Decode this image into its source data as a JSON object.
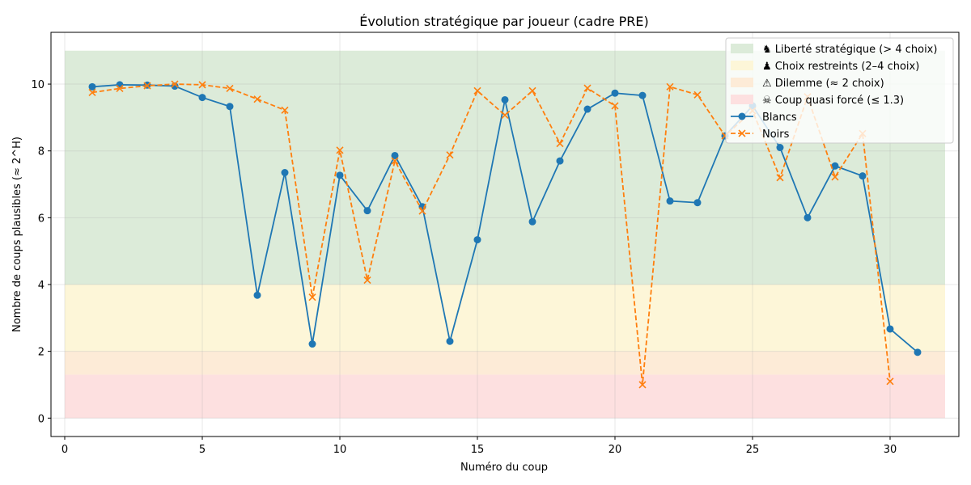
{
  "chart_data": {
    "type": "line",
    "title": "Évolution stratégique par joueur (cadre PRE)",
    "xlabel": "Numéro du coup",
    "ylabel": "Nombre de coups plausibles (≈ 2^H)",
    "xlim": [
      -0.5,
      32.5
    ],
    "ylim": [
      -0.55,
      11.55
    ],
    "xticks": [
      0,
      5,
      10,
      15,
      20,
      25,
      30
    ],
    "yticks": [
      0,
      2,
      4,
      6,
      8,
      10
    ],
    "grid": true,
    "legend_position": "top-right",
    "bands": [
      {
        "label": "♞ Liberté stratégique (> 4 choix)",
        "y0": 4,
        "y1": 11,
        "color": "#dcebd9"
      },
      {
        "label": "♟ Choix restreints (2–4 choix)",
        "y0": 2,
        "y1": 4,
        "color": "#fdf6d8"
      },
      {
        "label": "⚠ Dilemme (≈ 2 choix)",
        "y0": 1.3,
        "y1": 2,
        "color": "#fdebd7"
      },
      {
        "label": "☠ Coup quasi forcé (≤ 1.3)",
        "y0": 0,
        "y1": 1.3,
        "color": "#fde0e0"
      }
    ],
    "series": [
      {
        "name": "Blancs",
        "color": "#1f77b4",
        "marker": "circle",
        "line": "solid",
        "x": [
          1,
          2,
          3,
          4,
          5,
          6,
          7,
          8,
          9,
          10,
          11,
          12,
          13,
          14,
          15,
          16,
          17,
          18,
          19,
          20,
          21,
          22,
          23,
          24,
          25,
          26,
          27,
          28,
          29,
          30,
          31
        ],
        "y": [
          9.92,
          9.98,
          9.97,
          9.94,
          9.6,
          9.33,
          3.68,
          7.35,
          2.22,
          7.27,
          6.21,
          7.86,
          6.33,
          2.3,
          5.34,
          9.53,
          5.88,
          7.7,
          9.25,
          9.73,
          9.66,
          6.5,
          6.45,
          8.45,
          9.35,
          8.1,
          6.0,
          7.55,
          7.25,
          2.67,
          1.97
        ]
      },
      {
        "name": "Noirs",
        "color": "#ff7f0e",
        "marker": "x",
        "line": "dashed",
        "x": [
          1,
          2,
          3,
          4,
          5,
          6,
          7,
          8,
          9,
          10,
          11,
          12,
          13,
          14,
          15,
          16,
          17,
          18,
          19,
          20,
          21,
          22,
          23,
          24,
          25,
          26,
          27,
          28,
          29,
          30
        ],
        "y": [
          9.75,
          9.87,
          9.95,
          10.0,
          9.98,
          9.87,
          9.55,
          9.22,
          3.62,
          8.02,
          4.13,
          7.7,
          6.2,
          7.88,
          9.8,
          9.07,
          9.8,
          8.22,
          9.88,
          9.35,
          1.0,
          9.92,
          9.68,
          8.45,
          9.2,
          7.2,
          9.62,
          7.22,
          8.52,
          1.1
        ]
      }
    ]
  }
}
